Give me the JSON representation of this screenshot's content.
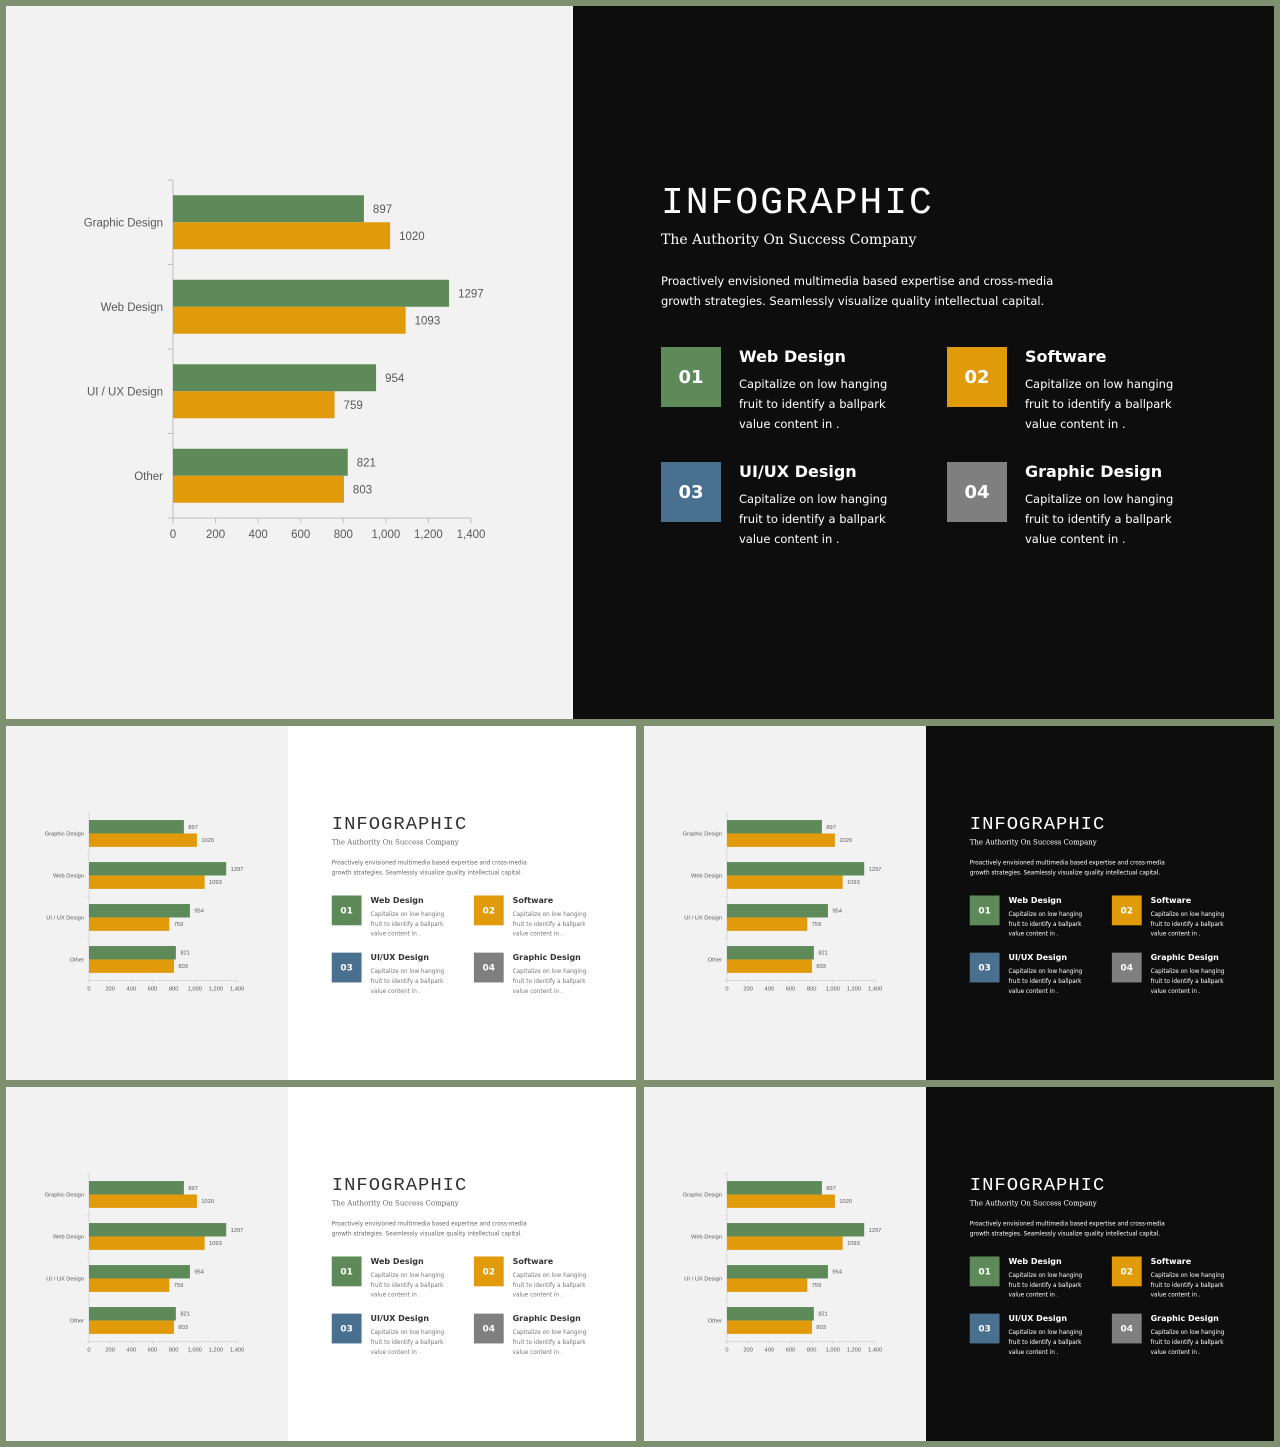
{
  "slide": {
    "title": "INFOGRAPHIC",
    "subtitle": "The Authority On Success Company",
    "description": "Proactively envisioned multimedia based expertise and cross-media growth strategies. Seamlessly visualize quality intellectual capital.",
    "features": [
      {
        "number": "01",
        "title": "Web Design",
        "desc": "Capitalize on low hanging fruit to  identify a ballpark value content  in .",
        "color": "#5d8a58"
      },
      {
        "number": "02",
        "title": "Software",
        "desc": "Capitalize on low hanging fruit to  identify a ballpark value content  in .",
        "color": "#e09a0a"
      },
      {
        "number": "03",
        "title": "UI/UX Design",
        "desc": "Capitalize on low hanging fruit to  identify a ballpark value content  in .",
        "color": "#4a7090"
      },
      {
        "number": "04",
        "title": "Graphic Design",
        "desc": "Capitalize on low hanging fruit to  identify a ballpark value content  in .",
        "color": "#7f7f7f"
      }
    ]
  },
  "colors": {
    "frame": "#7f9070",
    "series_a": "#5d8a58",
    "series_b": "#e09a0a",
    "dark_bg": "#0d0d0d",
    "light_bg": "#ffffff",
    "chart_bg": "#f2f2f2"
  },
  "chart_data": {
    "type": "bar",
    "orientation": "horizontal",
    "categories": [
      "Graphic Design",
      "Web Design",
      "UI / UX Design",
      "Other"
    ],
    "series": [
      {
        "values": [
          897,
          1297,
          954,
          821
        ]
      },
      {
        "values": [
          1020,
          1093,
          759,
          803
        ]
      }
    ],
    "xlim": [
      0,
      1400
    ],
    "xticks": [
      "0",
      "200",
      "400",
      "600",
      "800",
      "1,000",
      "1,200",
      "1,400"
    ],
    "grid": false
  }
}
